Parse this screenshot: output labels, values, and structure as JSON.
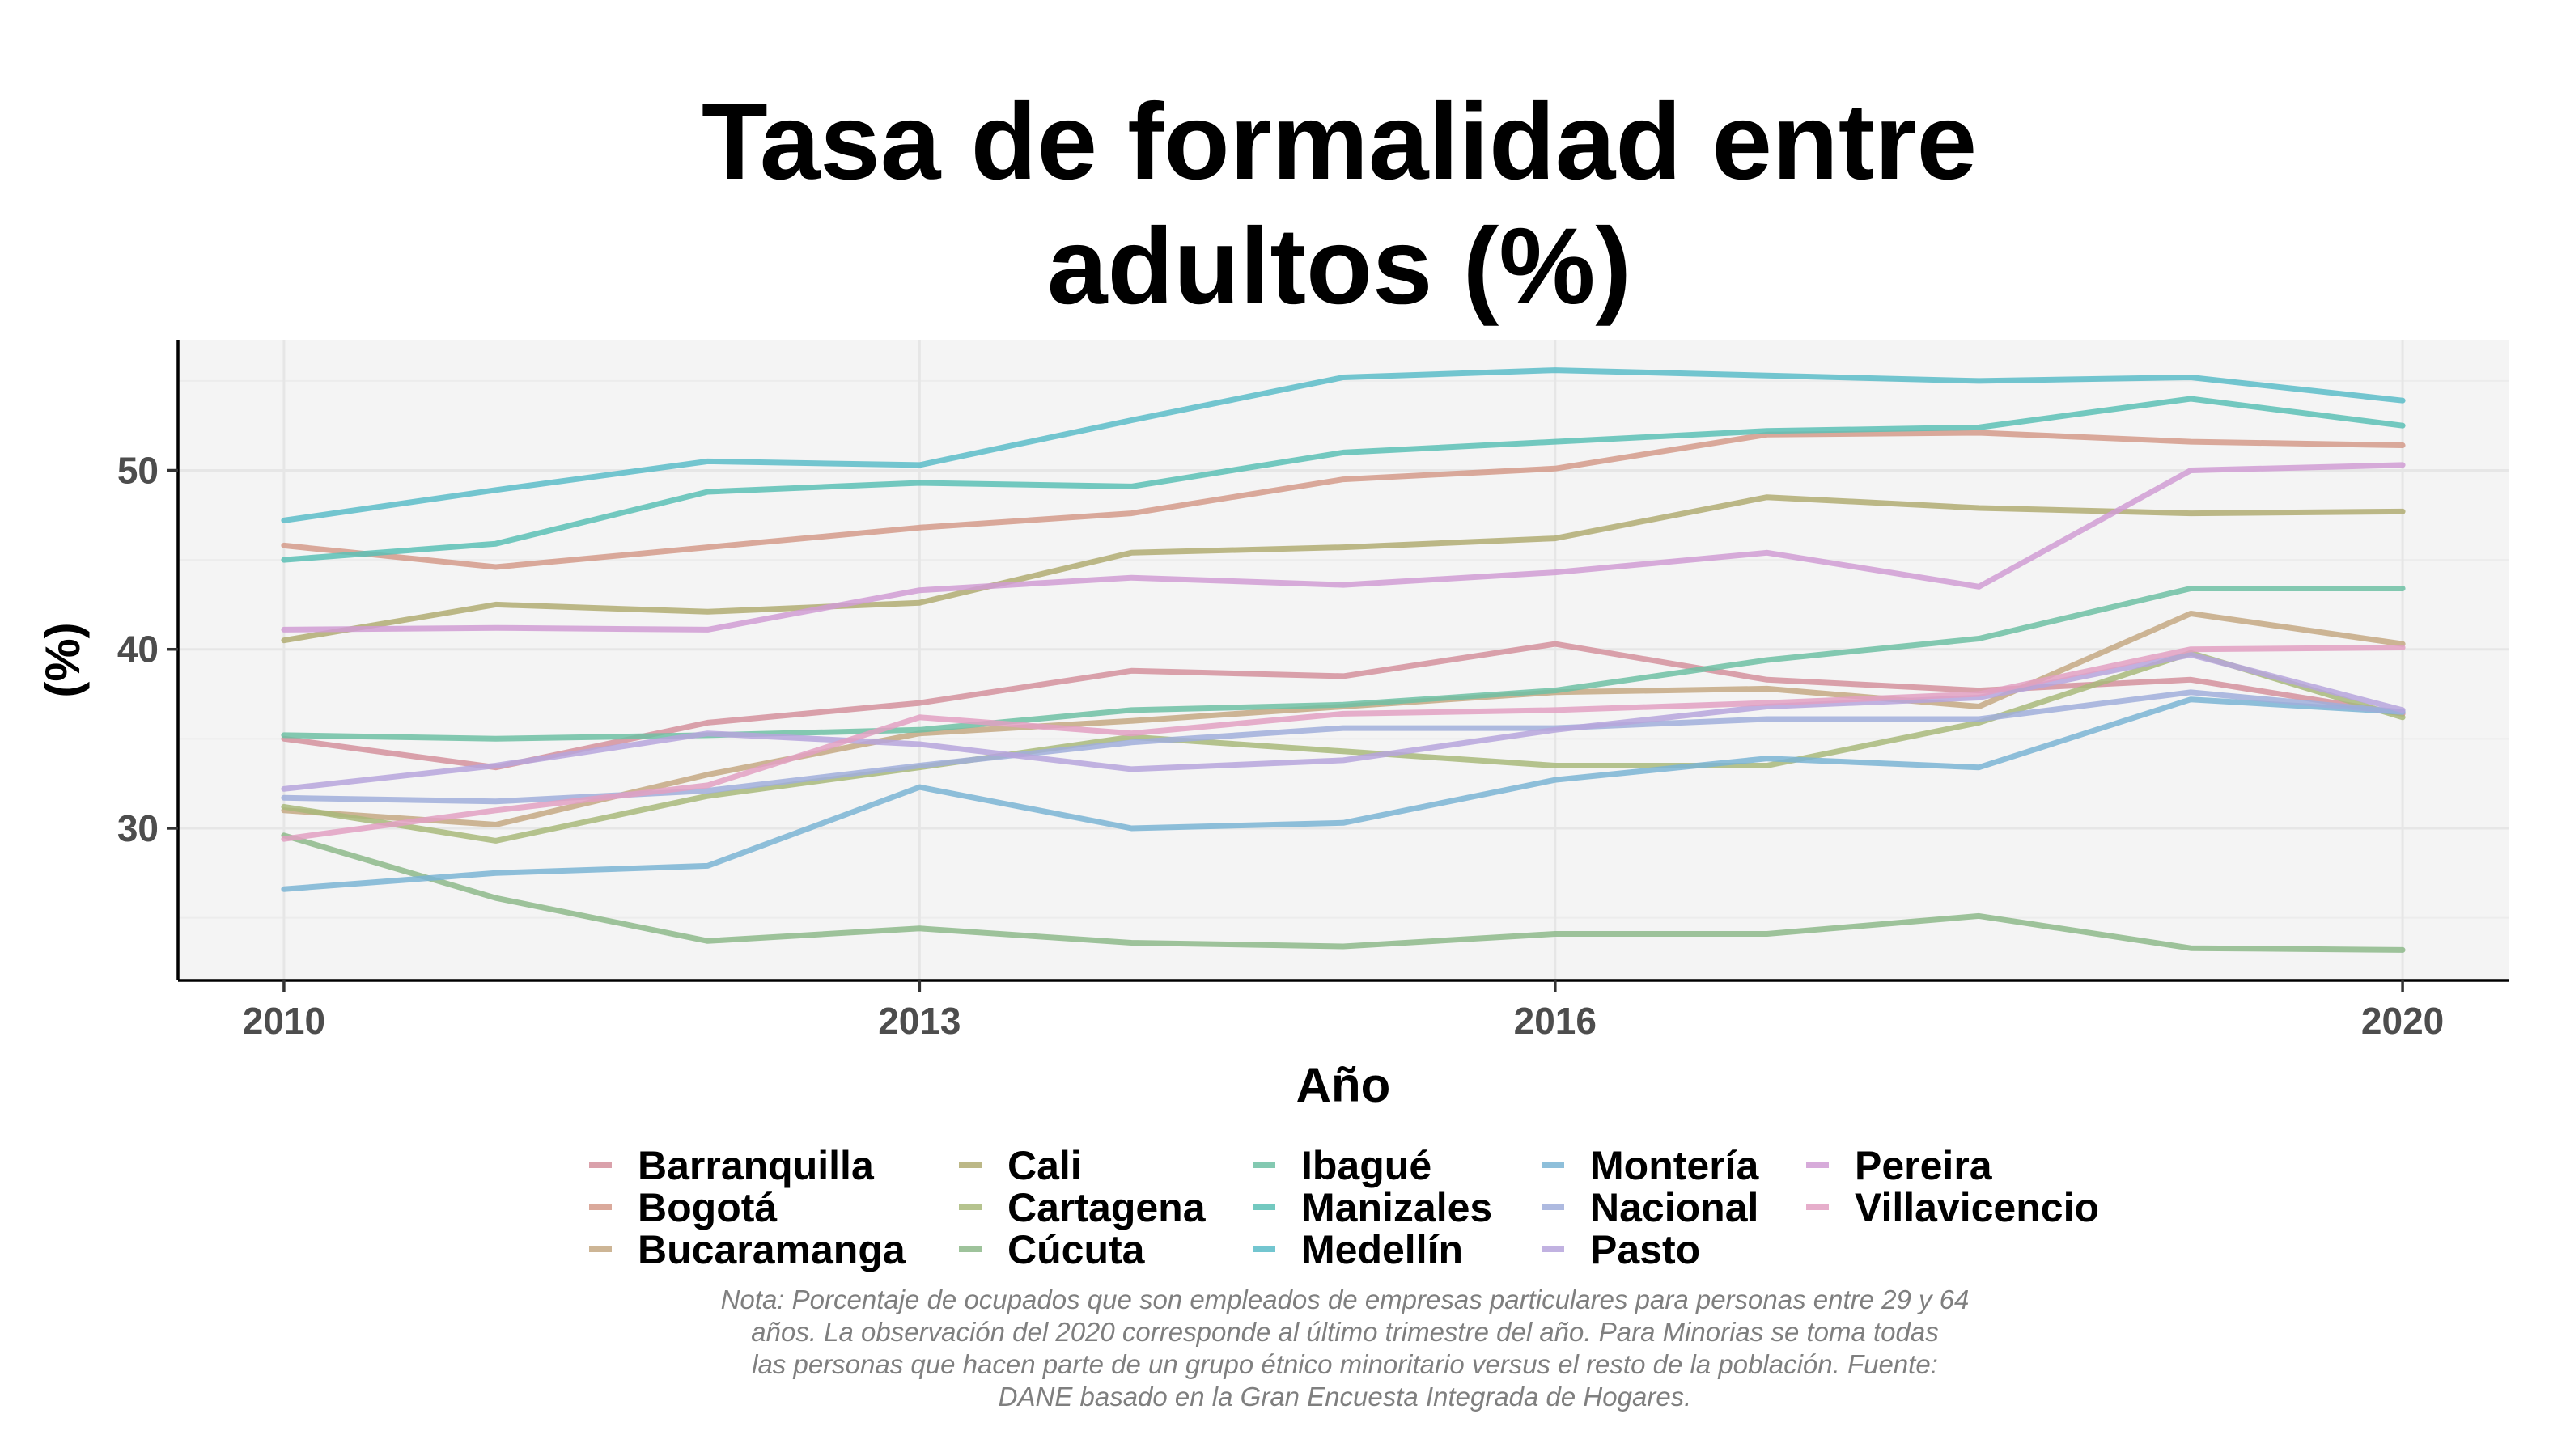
{
  "chart_data": {
    "type": "line",
    "title_lines": [
      "Tasa de formalidad entre",
      "adultos (%)"
    ],
    "xlabel": "Año",
    "ylabel": "(%)",
    "x": [
      2010,
      2011,
      2012,
      2013,
      2014,
      2015,
      2016,
      2017,
      2018,
      2019,
      2020
    ],
    "xlim": [
      2009.5,
      2020.5
    ],
    "ylim": [
      21.5,
      57.3
    ],
    "x_ticks": [
      2010,
      2013,
      2016,
      2020
    ],
    "y_ticks": [
      30,
      40,
      50
    ],
    "grid": true,
    "legend_position": "bottom",
    "series": [
      {
        "name": "Barranquilla",
        "color": "#D4909C",
        "values": [
          35.0,
          33.4,
          35.9,
          37.0,
          38.8,
          38.5,
          40.3,
          38.3,
          37.7,
          38.3,
          36.4
        ]
      },
      {
        "name": "Bogotá",
        "color": "#D49A8A",
        "values": [
          45.8,
          44.6,
          45.7,
          46.8,
          47.6,
          49.5,
          50.1,
          52.0,
          52.1,
          51.6,
          51.4
        ]
      },
      {
        "name": "Bucaramanga",
        "color": "#C4A882",
        "values": [
          31.0,
          30.2,
          33.0,
          35.3,
          36.0,
          36.8,
          37.6,
          37.8,
          36.8,
          42.0,
          40.3
        ]
      },
      {
        "name": "Cali",
        "color": "#B0AC72",
        "values": [
          40.5,
          42.5,
          42.1,
          42.6,
          45.4,
          45.7,
          46.2,
          48.5,
          47.9,
          47.6,
          47.7
        ]
      },
      {
        "name": "Cartagena",
        "color": "#A8B87A",
        "values": [
          31.2,
          29.3,
          31.8,
          33.4,
          35.1,
          34.3,
          33.5,
          33.5,
          35.9,
          39.8,
          36.2
        ]
      },
      {
        "name": "Cúcuta",
        "color": "#8DB88A",
        "values": [
          29.6,
          26.1,
          23.7,
          24.4,
          23.6,
          23.4,
          24.1,
          24.1,
          25.1,
          23.3,
          23.2
        ]
      },
      {
        "name": "Ibagué",
        "color": "#6DC0A3",
        "values": [
          35.2,
          35.0,
          35.2,
          35.5,
          36.6,
          36.9,
          37.7,
          39.4,
          40.6,
          43.4,
          43.4
        ]
      },
      {
        "name": "Manizales",
        "color": "#5BC0B5",
        "values": [
          45.0,
          45.9,
          48.8,
          49.3,
          49.1,
          51.0,
          51.6,
          52.2,
          52.4,
          54.0,
          52.5
        ]
      },
      {
        "name": "Medellín",
        "color": "#5BBCC8",
        "values": [
          47.2,
          48.9,
          50.5,
          50.3,
          52.8,
          55.2,
          55.6,
          55.3,
          55.0,
          55.2,
          53.9
        ]
      },
      {
        "name": "Montería",
        "color": "#7AB4D4",
        "values": [
          26.6,
          27.5,
          27.9,
          32.3,
          30.0,
          30.3,
          32.7,
          33.9,
          33.4,
          37.2,
          36.5
        ]
      },
      {
        "name": "Nacional",
        "color": "#A0AEDA",
        "values": [
          31.7,
          31.5,
          32.1,
          33.5,
          34.8,
          35.6,
          35.6,
          36.1,
          36.1,
          37.6,
          36.5
        ]
      },
      {
        "name": "Pasto",
        "color": "#B6A4DC",
        "values": [
          32.2,
          33.5,
          35.3,
          34.7,
          33.3,
          33.8,
          35.5,
          36.8,
          37.3,
          39.7,
          36.6
        ]
      },
      {
        "name": "Pereira",
        "color": "#D09CD4",
        "values": [
          41.1,
          41.2,
          41.1,
          43.3,
          44.0,
          43.6,
          44.3,
          45.4,
          43.5,
          50.0,
          50.3
        ]
      },
      {
        "name": "Villavicencio",
        "color": "#E2A0C2",
        "values": [
          29.4,
          31.0,
          32.4,
          36.2,
          35.3,
          36.4,
          36.6,
          37.0,
          37.5,
          40.0,
          40.1
        ]
      }
    ],
    "caption_lines": [
      "Nota: Porcentaje de ocupados que son empleados de empresas particulares para personas entre 29 y 64",
      "años. La observación del 2020 corresponde al último trimestre del año. Para Minorias se toma todas",
      "las personas que hacen parte de un grupo étnico minoritario versus el resto de la población. Fuente:",
      "DANE basado en la Gran Encuesta Integrada de Hogares."
    ]
  }
}
